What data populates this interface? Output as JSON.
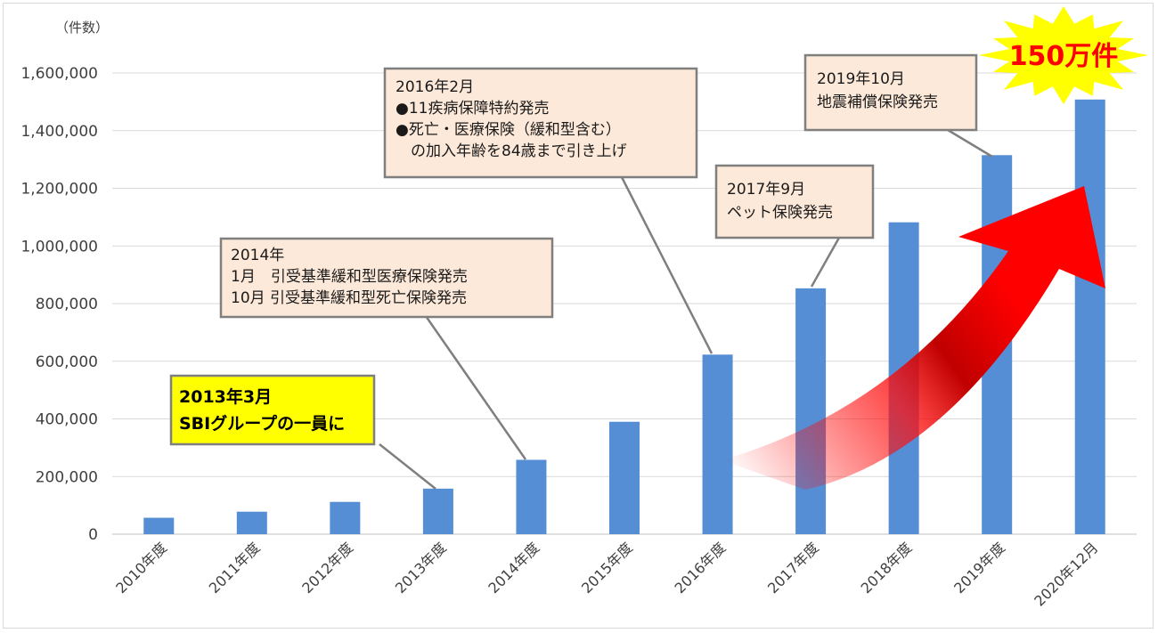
{
  "chart_data": {
    "type": "bar",
    "unit_label": "（件数）",
    "categories": [
      "2010年度",
      "2011年度",
      "2012年度",
      "2013年度",
      "2014年度",
      "2015年度",
      "2016年度",
      "2017年度",
      "2018年度",
      "2019年度",
      "2020年12月"
    ],
    "values": [
      57000,
      78000,
      112000,
      158000,
      258000,
      390000,
      623000,
      853000,
      1082000,
      1315000,
      1508000
    ],
    "ylim": [
      0,
      1600000
    ],
    "yticks": [
      "0",
      "200,000",
      "400,000",
      "600,000",
      "800,000",
      "1,000,000",
      "1,200,000",
      "1,400,000",
      "1,600,000"
    ],
    "grid": true,
    "bar_color": "#558ed5",
    "annotations": [
      {
        "name": "sbi",
        "category_index": 3,
        "lines": [
          "2013年3月",
          "SBIグループの一員に"
        ]
      },
      {
        "name": "2014",
        "category_index": 4,
        "lines": [
          "2014年",
          "1月　引受基準緩和型医療保険発売",
          "10月 引受基準緩和型死亡保険発売"
        ]
      },
      {
        "name": "2016",
        "category_index": 6,
        "lines": [
          "2016年2月",
          "●11疾病保障特約発売",
          "●死亡・医療保険（緩和型含む）",
          "　の加入年齢を84歳まで引き上げ"
        ]
      },
      {
        "name": "2017",
        "category_index": 7,
        "lines": [
          "2017年9月",
          "ペット保険発売"
        ]
      },
      {
        "name": "2019",
        "category_index": 9,
        "lines": [
          "2019年10月",
          "地震補償保険発売"
        ]
      }
    ],
    "highlight": "150万件"
  },
  "colors": {
    "bar": "#558ed5",
    "callout_fill": "#fde9d9",
    "callout_border": "#7f7f7f",
    "sbi_fill": "#ffff00",
    "burst_fill": "#ffff00",
    "burst_text": "#ff0000",
    "arrow": "#ff0000"
  }
}
